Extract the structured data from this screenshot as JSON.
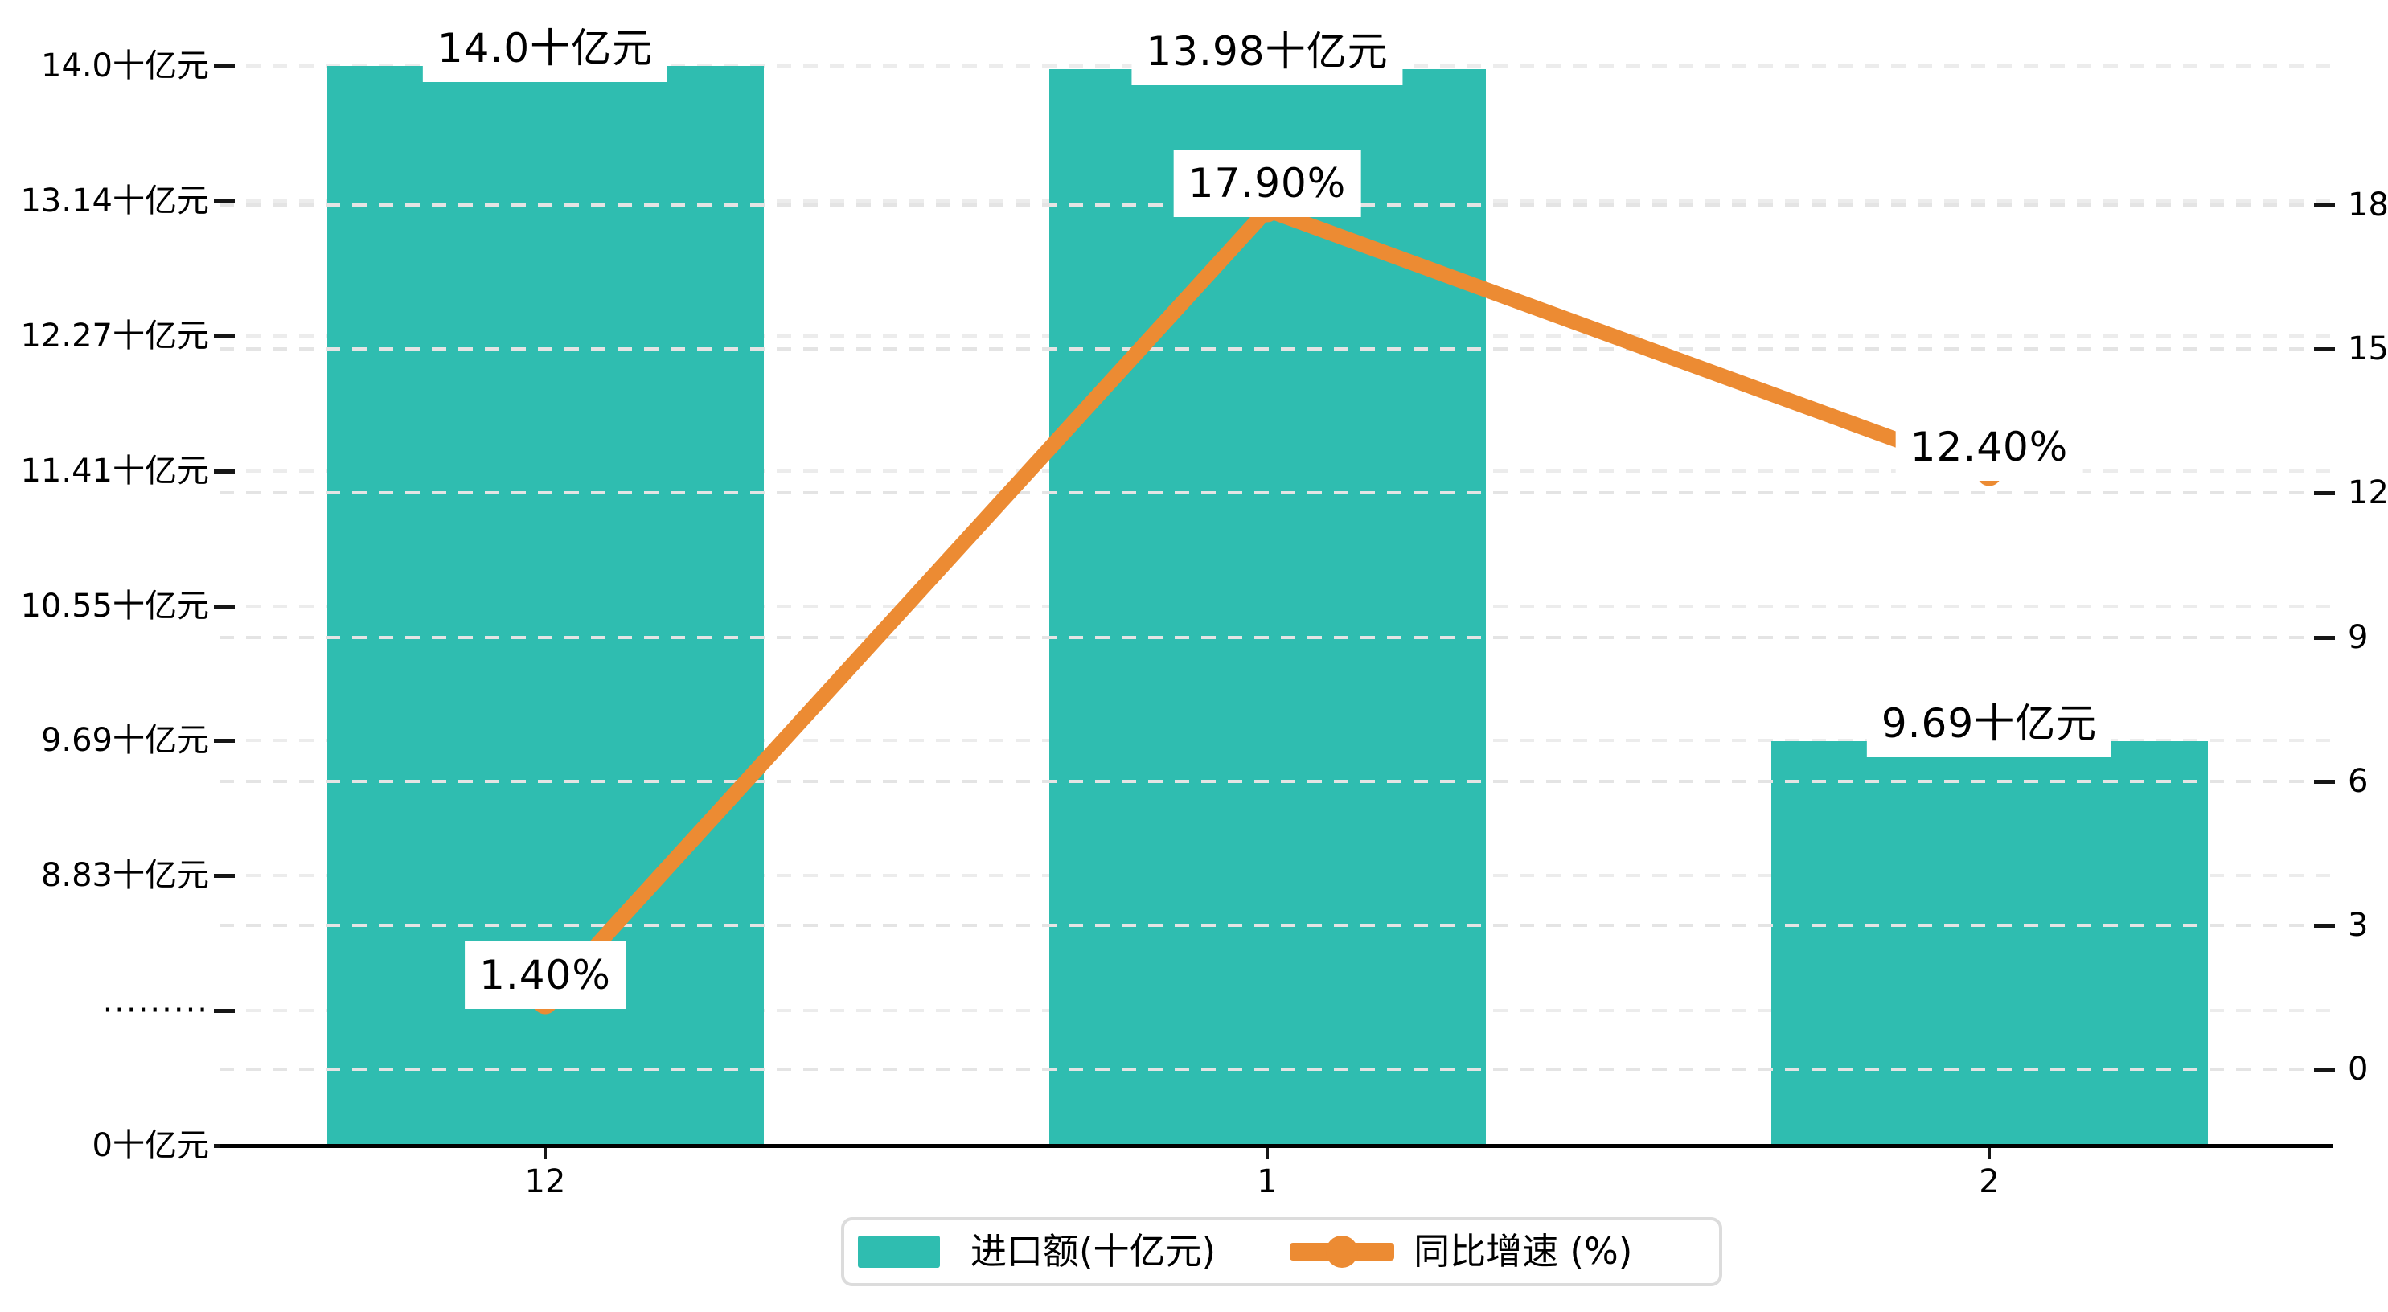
{
  "chart_data": {
    "type": "bar",
    "subtype": "bar+line combo, dual y-axis",
    "categories": [
      "12",
      "1",
      "2"
    ],
    "series": [
      {
        "name": "进口额(十亿元)",
        "type": "bar",
        "unit": "十亿元",
        "color": "#2FBDB0",
        "values": [
          14.0,
          13.98,
          9.69
        ],
        "data_labels": [
          "14.0十亿元",
          "13.98十亿元",
          "9.69十亿元"
        ],
        "axis": "left"
      },
      {
        "name": "同比增速 (%)",
        "type": "line",
        "unit": "%",
        "color": "#EC8B33",
        "values": [
          1.4,
          17.9,
          12.4
        ],
        "data_labels": [
          "1.40%",
          "17.90%",
          "12.40%"
        ],
        "axis": "right"
      }
    ],
    "left_axis": {
      "tick_labels": [
        "0十亿元",
        "·········",
        "8.83十亿元",
        "9.69十亿元",
        "10.55十亿元",
        "11.41十亿元",
        "12.27十亿元",
        "13.14十亿元",
        "14.0十亿元"
      ],
      "tick_values": [
        0,
        null,
        8.83,
        9.69,
        10.55,
        11.41,
        12.27,
        13.14,
        14.0
      ],
      "broken_axis": true,
      "break_marker": "·········"
    },
    "right_axis": {
      "tick_labels": [
        "0",
        "3",
        "6",
        "9",
        "12",
        "15",
        "18"
      ],
      "tick_values": [
        0,
        3,
        6,
        9,
        12,
        15,
        18
      ],
      "range": [
        0,
        18
      ]
    },
    "legend": {
      "position": "bottom",
      "items": [
        {
          "label": "进口额(十亿元)",
          "marker": "bar-swatch"
        },
        {
          "label": "同比增速 (%)",
          "marker": "line-with-dot"
        }
      ]
    },
    "grid": "dashed",
    "title": ""
  },
  "colors": {
    "bar": "#2FBDB0",
    "line": "#EC8B33",
    "background": "#ffffff",
    "text": "#000000",
    "grid_left": "#ececec",
    "grid_right": "#e4e4e4",
    "axis_line": "#000000",
    "legend_border": "#dcdcdc",
    "label_background": "#ffffff"
  }
}
